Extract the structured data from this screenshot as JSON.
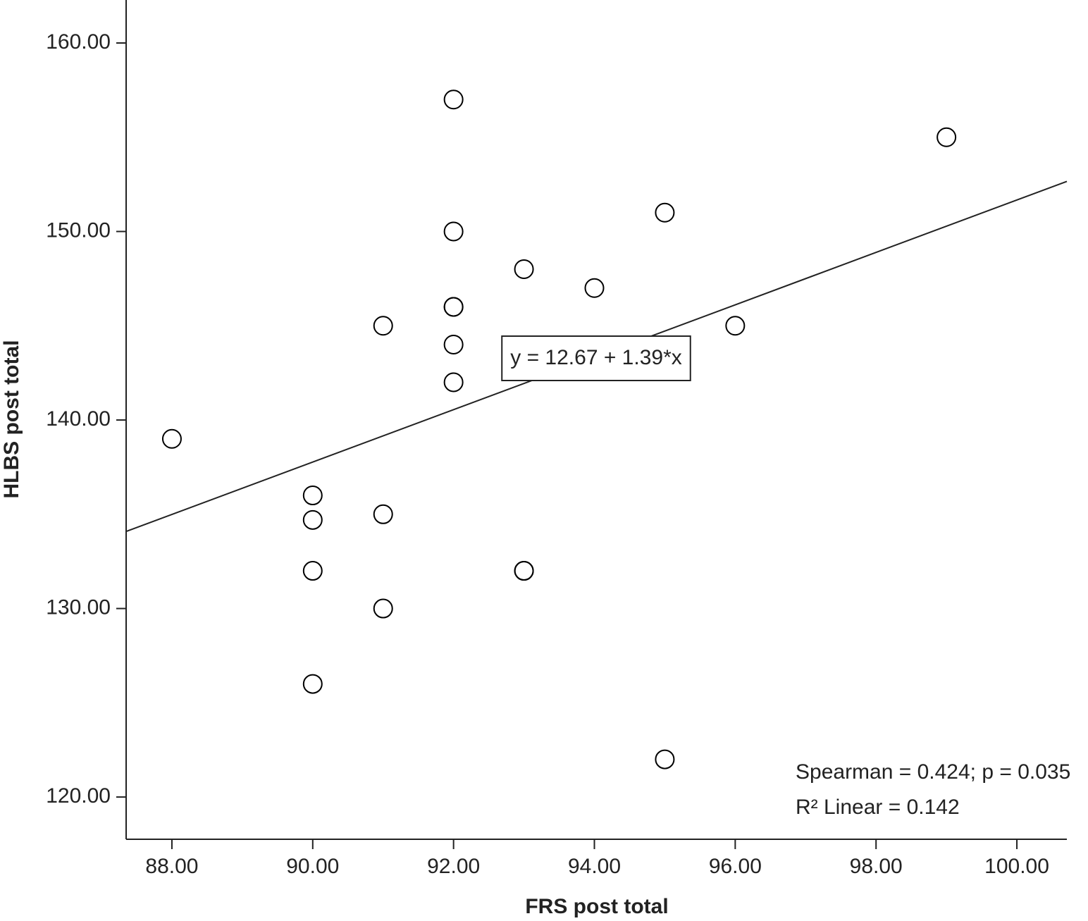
{
  "chart_data": {
    "type": "scatter",
    "x_label": "FRS post total",
    "y_label": "HLBS post total",
    "x": [
      92,
      99,
      95,
      92,
      93,
      94,
      92,
      92,
      91,
      96,
      92,
      92,
      88,
      90,
      90,
      91,
      90,
      93,
      93,
      91,
      90,
      95
    ],
    "values": [
      157,
      155,
      151,
      150,
      148,
      147,
      146,
      146,
      145,
      145,
      144,
      142,
      139,
      136,
      134.7,
      135,
      132,
      132,
      132,
      130,
      126,
      122
    ],
    "color": "#000000",
    "xlim": [
      87.35,
      100.71
    ],
    "ylim": [
      117.76,
      162.28
    ],
    "xticks": [
      {
        "value": 88,
        "label": "88.00"
      },
      {
        "value": 90,
        "label": "90.00"
      },
      {
        "value": 92,
        "label": "92.00"
      },
      {
        "value": 94,
        "label": "94.00"
      },
      {
        "value": 96,
        "label": "96.00"
      },
      {
        "value": 98,
        "label": "98.00"
      },
      {
        "value": 100,
        "label": "100.00"
      }
    ],
    "yticks": [
      {
        "value": 120,
        "label": "120.00"
      },
      {
        "value": 130,
        "label": "130.00"
      },
      {
        "value": 140,
        "label": "140.00"
      },
      {
        "value": 150,
        "label": "150.00"
      },
      {
        "value": 160,
        "label": "160.00"
      }
    ],
    "fit": {
      "label": "y = 12.67 + 1.39*x",
      "intercept": 12.67,
      "slope": 1.39
    },
    "annotations": [
      "Spearman = 0.424; p = 0.035",
      "R² Linear = 0.142"
    ]
  }
}
